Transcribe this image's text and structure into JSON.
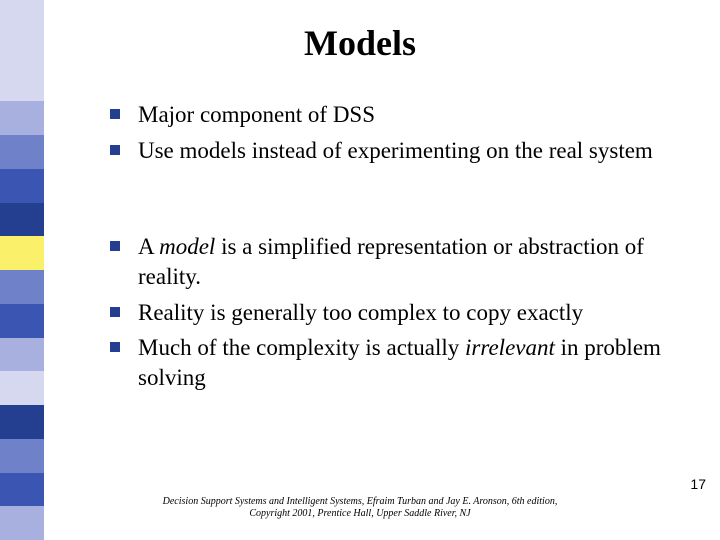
{
  "title": "Models",
  "sidebar_colors": [
    "#d5d8ef",
    "#d5d8ef",
    "#d5d8ef",
    "#a7b0df",
    "#6f82c9",
    "#3a55b2",
    "#243f8f",
    "#faf06a",
    "#6f82c9",
    "#3a55b2",
    "#a7b0df",
    "#d5d8ef",
    "#243f8f",
    "#6f82c9",
    "#3a55b2",
    "#a7b0df"
  ],
  "bullet_color": "#243f8f",
  "bullets_group1": [
    {
      "segments": [
        {
          "text": "Major component of DSS",
          "italic": false
        }
      ]
    },
    {
      "segments": [
        {
          "text": "Use models instead of experimenting on the real system",
          "italic": false
        }
      ]
    }
  ],
  "bullets_group2": [
    {
      "segments": [
        {
          "text": "A ",
          "italic": false
        },
        {
          "text": "model",
          "italic": true
        },
        {
          "text": " is a simplified representation or abstraction of reality.",
          "italic": false
        }
      ]
    },
    {
      "segments": [
        {
          "text": "Reality is generally too complex to copy exactly",
          "italic": false
        }
      ]
    },
    {
      "segments": [
        {
          "text": "Much of the complexity is actually ",
          "italic": false
        },
        {
          "text": "irrelevant",
          "italic": true
        },
        {
          "text": " in problem solving",
          "italic": false
        }
      ]
    }
  ],
  "footer_line1": "Decision Support Systems and Intelligent Systems, Efraim Turban and Jay E. Aronson, 6th edition,",
  "footer_line2": "Copyright 2001, Prentice Hall, Upper Saddle River, NJ",
  "page_number": "17",
  "fontsize_title": 36,
  "fontsize_body": 23,
  "fontsize_footer": 10,
  "fontsize_pagenum": 14,
  "background_color": "#ffffff",
  "text_color": "#000000"
}
